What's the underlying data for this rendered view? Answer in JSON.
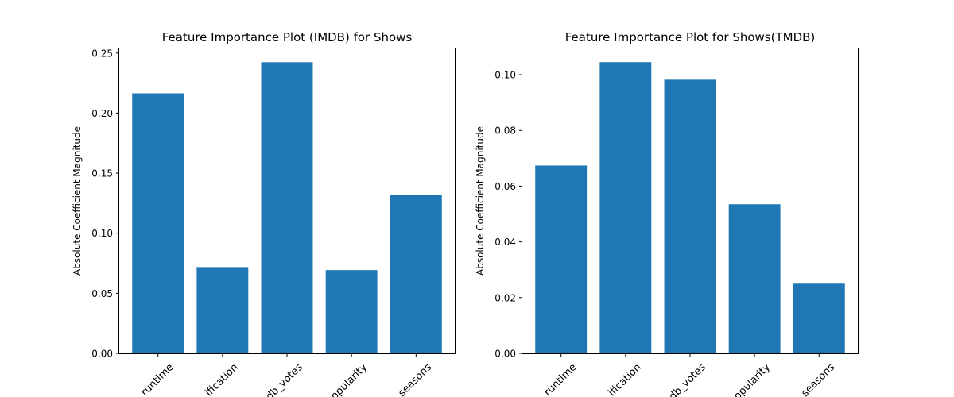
{
  "chart_data": [
    {
      "type": "bar",
      "title": "Feature Importance Plot (IMDB) for Shows",
      "xlabel": "",
      "ylabel": "Absolute Coefficient Magnitude",
      "categories": [
        "runtime",
        "age_certification",
        "imdb_votes",
        "tmdb_popularity",
        "seasons"
      ],
      "visible_tick_labels": [
        "runtime",
        "ification",
        "db_votes",
        "opularity",
        "seasons"
      ],
      "values": [
        0.2165,
        0.0718,
        0.2424,
        0.0693,
        0.132
      ],
      "ylim": [
        0,
        0.2545
      ],
      "yticks": [
        0.0,
        0.05,
        0.1,
        0.15,
        0.2,
        0.25
      ],
      "ytick_labels": [
        "0.00",
        "0.05",
        "0.10",
        "0.15",
        "0.20",
        "0.25"
      ],
      "bar_color": "#1f77b4",
      "grid": false,
      "legend": "none"
    },
    {
      "type": "bar",
      "title": "Feature Importance Plot for Shows(TMDB)",
      "xlabel": "",
      "ylabel": "Absolute Coefficient Magnitude",
      "categories": [
        "runtime",
        "age_certification",
        "imdb_votes",
        "tmdb_popularity",
        "seasons"
      ],
      "visible_tick_labels": [
        "runtime",
        "ification",
        "db_votes",
        "opularity",
        "seasons"
      ],
      "values": [
        0.0674,
        0.1045,
        0.0982,
        0.0535,
        0.025
      ],
      "ylim": [
        0,
        0.1097
      ],
      "yticks": [
        0.0,
        0.02,
        0.04,
        0.06,
        0.08,
        0.1
      ],
      "ytick_labels": [
        "0.00",
        "0.02",
        "0.04",
        "0.06",
        "0.08",
        "0.10"
      ],
      "bar_color": "#1f77b4",
      "grid": false,
      "legend": "none"
    }
  ]
}
